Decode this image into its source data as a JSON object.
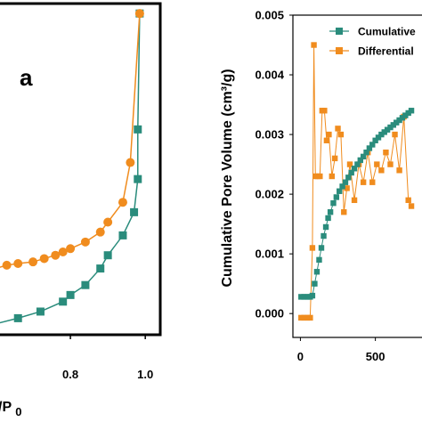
{
  "chart_data": [
    {
      "type": "line",
      "panel_label": "a",
      "xlabel": "/P0",
      "ylabel": "",
      "x_ticks": [
        "0.8",
        "1.0"
      ],
      "xlim": [
        0.6,
        1.04
      ],
      "ylim": [
        0,
        1
      ],
      "colors": {
        "branch_1": "#2a8c7c",
        "branch_2": "#f08c1e"
      },
      "series": [
        {
          "name": "",
          "marker": "square",
          "color": "#2a8c7c",
          "x": [
            0.59,
            0.66,
            0.72,
            0.78,
            0.8,
            0.84,
            0.88,
            0.9,
            0.94,
            0.97,
            0.98,
            0.98,
            0.985
          ],
          "y": [
            0.03,
            0.05,
            0.07,
            0.1,
            0.12,
            0.15,
            0.2,
            0.24,
            0.3,
            0.37,
            0.47,
            0.62,
            0.97
          ]
        },
        {
          "name": "",
          "marker": "circle",
          "color": "#f08c1e",
          "x": [
            0.985,
            0.96,
            0.94,
            0.9,
            0.88,
            0.84,
            0.8,
            0.78,
            0.76,
            0.73,
            0.7,
            0.66,
            0.63,
            0.6
          ],
          "y": [
            0.97,
            0.52,
            0.4,
            0.34,
            0.31,
            0.28,
            0.26,
            0.25,
            0.24,
            0.23,
            0.22,
            0.215,
            0.21,
            0.2
          ]
        }
      ]
    },
    {
      "type": "line",
      "xlabel": "",
      "ylabel": "Cumulative Pore Volume (cm³/g)",
      "ylim": [
        -0.0004,
        0.005
      ],
      "xlim": [
        -50,
        900
      ],
      "y_ticks": [
        "0.000",
        "0.001",
        "0.002",
        "0.003",
        "0.004",
        "0.005"
      ],
      "x_ticks": [
        "0",
        "500"
      ],
      "legend": {
        "position": "top-right",
        "entries": [
          "Cumulative",
          "Differential"
        ]
      },
      "series": [
        {
          "name": "Cumulative",
          "marker": "square",
          "color": "#2a8c7c",
          "x": [
            5,
            25,
            45,
            65,
            80,
            95,
            110,
            125,
            140,
            155,
            170,
            185,
            200,
            220,
            240,
            260,
            280,
            300,
            320,
            340,
            360,
            380,
            400,
            420,
            440,
            460,
            480,
            500,
            520,
            540,
            560,
            580,
            600,
            620,
            640,
            660,
            680,
            700,
            720,
            740
          ],
          "y": [
            0.00028,
            0.00028,
            0.00028,
            0.00028,
            0.0003,
            0.0005,
            0.0007,
            0.0009,
            0.0011,
            0.0013,
            0.00145,
            0.0016,
            0.0017,
            0.00185,
            0.00195,
            0.00205,
            0.00213,
            0.0022,
            0.00228,
            0.00236,
            0.00243,
            0.0025,
            0.00257,
            0.00263,
            0.0027,
            0.00277,
            0.00283,
            0.0029,
            0.00295,
            0.003,
            0.00304,
            0.00308,
            0.00312,
            0.00316,
            0.0032,
            0.00324,
            0.00328,
            0.00332,
            0.00336,
            0.0034
          ]
        },
        {
          "name": "Differential",
          "marker": "square",
          "color": "#f08c1e",
          "x": [
            5,
            25,
            45,
            65,
            80,
            90,
            100,
            115,
            130,
            145,
            160,
            175,
            190,
            210,
            230,
            250,
            270,
            290,
            310,
            330,
            360,
            390,
            420,
            450,
            480,
            510,
            540,
            570,
            600,
            630,
            660,
            690,
            720,
            740
          ],
          "y": [
            -7e-05,
            -7e-05,
            -7e-05,
            -7e-05,
            0.0011,
            0.0045,
            0.0023,
            0.0023,
            0.0023,
            0.0034,
            0.0034,
            0.0029,
            0.003,
            0.0023,
            0.0026,
            0.0031,
            0.003,
            0.0017,
            0.0021,
            0.0025,
            0.0019,
            0.0025,
            0.0022,
            0.0027,
            0.0022,
            0.0025,
            0.0024,
            0.0027,
            0.0025,
            0.003,
            0.0024,
            0.0033,
            0.0019,
            0.0018
          ]
        }
      ]
    }
  ]
}
